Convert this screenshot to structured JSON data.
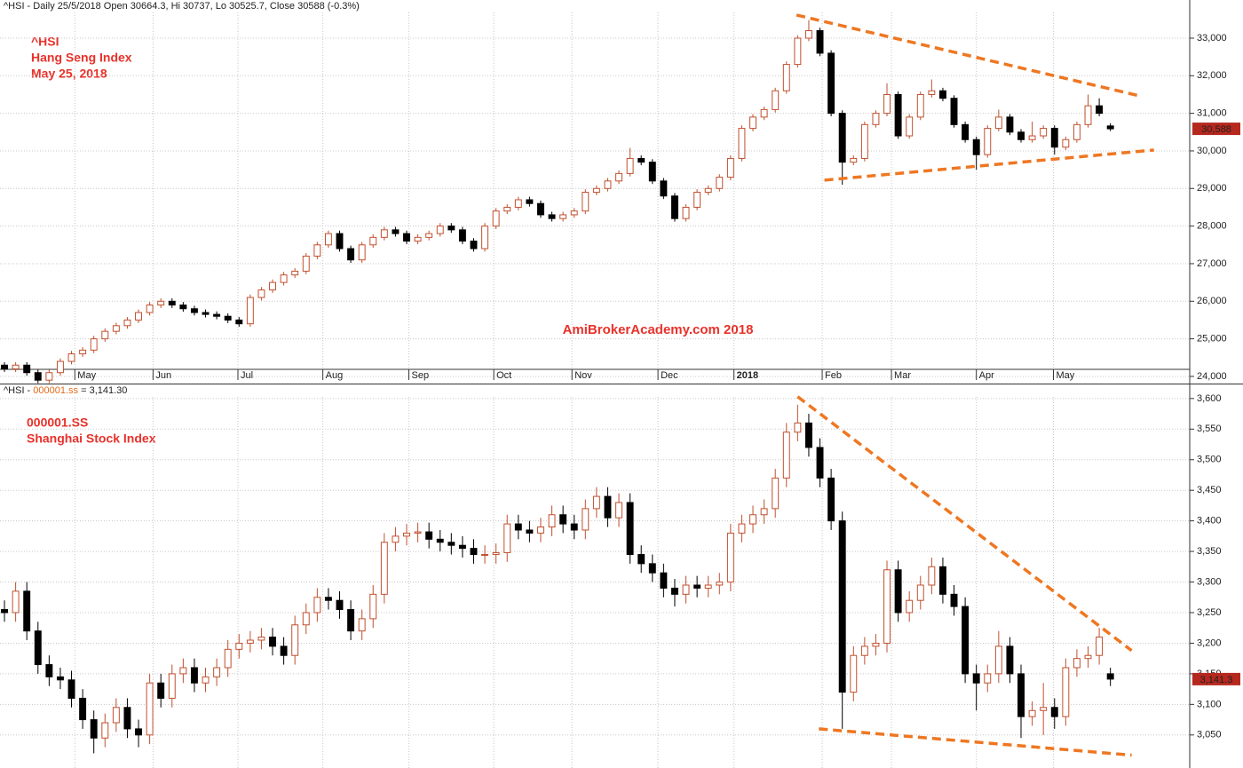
{
  "chart_data": [
    {
      "type": "candlestick",
      "title": "^HSI - Daily 25/5/2018 Open 30664.3, Hi 30737, Lo 30525.7, Close 30588 (-0.3%)",
      "annotations": [
        "^HSI",
        "Hang Seng Index",
        "May 25, 2018"
      ],
      "watermark": "AmiBrokerAcademy.com  2018",
      "last_label": "30,588",
      "up_color": "#c1502e",
      "down_color": "#000000",
      "trend_color": "#ee7722",
      "grid": true,
      "xlim": [
        -0.4,
        106.1
      ],
      "ylim": [
        23810,
        34015
      ],
      "yticks": [
        {
          "value": 24000,
          "label": "24,000"
        },
        {
          "value": 25000,
          "label": "25,000"
        },
        {
          "value": 26000,
          "label": "26,000"
        },
        {
          "value": 27000,
          "label": "27,000"
        },
        {
          "value": 28000,
          "label": "28,000"
        },
        {
          "value": 29000,
          "label": "29,000"
        },
        {
          "value": 30000,
          "label": "30,000"
        },
        {
          "value": 31000,
          "label": "31,000"
        },
        {
          "value": 32000,
          "label": "32,000"
        },
        {
          "value": 33000,
          "label": "33,000"
        }
      ],
      "xticks": [
        {
          "value": 6.3,
          "label": "May"
        },
        {
          "value": 13.3,
          "label": "Jun"
        },
        {
          "value": 20.9,
          "label": "Jul"
        },
        {
          "value": 28.5,
          "label": "Aug"
        },
        {
          "value": 36.2,
          "label": "Sep"
        },
        {
          "value": 43.8,
          "label": "Oct"
        },
        {
          "value": 50.8,
          "label": "Nov"
        },
        {
          "value": 58.5,
          "label": "Dec"
        },
        {
          "value": 65.3,
          "label": "2018"
        },
        {
          "value": 73.2,
          "label": "Feb"
        },
        {
          "value": 79.4,
          "label": "Mar"
        },
        {
          "value": 87,
          "label": "Apr"
        },
        {
          "value": 93.9,
          "label": "May"
        }
      ],
      "open": [
        24300,
        24200,
        24300,
        24100,
        23900,
        24100,
        24400,
        24600,
        24700,
        25000,
        25200,
        25350,
        25500,
        25700,
        25900,
        26000,
        25900,
        25800,
        25700,
        25650,
        25600,
        25500,
        25400,
        26100,
        26300,
        26500,
        26700,
        26800,
        27200,
        27500,
        27800,
        27400,
        27100,
        27500,
        27700,
        27900,
        27800,
        27600,
        27700,
        27800,
        28000,
        27900,
        27600,
        27400,
        28000,
        28400,
        28500,
        28700,
        28600,
        28300,
        28200,
        28300,
        28400,
        28900,
        29000,
        29200,
        29400,
        29800,
        29700,
        29200,
        28800,
        28200,
        28500,
        28900,
        29000,
        29300,
        29800,
        30600,
        30900,
        31100,
        31600,
        32300,
        33000,
        33200,
        32600,
        31000,
        29700,
        29800,
        30700,
        31000,
        31500,
        30400,
        30900,
        31500,
        31600,
        31400,
        30700,
        30300,
        29900,
        30600,
        30900,
        30500,
        30300,
        30400,
        30600,
        30100,
        30300,
        30700,
        31200,
        30664.3
      ],
      "high": [
        24380,
        24380,
        24380,
        24180,
        24180,
        24480,
        24680,
        24780,
        25080,
        25280,
        25430,
        25580,
        25780,
        25980,
        26080,
        26080,
        25980,
        25880,
        25780,
        25730,
        25680,
        25580,
        26180,
        26380,
        26580,
        26780,
        26880,
        27280,
        27580,
        27880,
        27880,
        27480,
        27580,
        27780,
        27980,
        27980,
        27880,
        27780,
        27880,
        28080,
        28080,
        27980,
        27680,
        28080,
        28480,
        28580,
        28780,
        28780,
        28680,
        28380,
        28380,
        28480,
        28980,
        29080,
        29280,
        29480,
        30080,
        29880,
        29780,
        29280,
        28880,
        28580,
        28980,
        29080,
        29380,
        29880,
        30680,
        30980,
        31180,
        31680,
        32380,
        33080,
        33480,
        33280,
        32680,
        31080,
        29880,
        30780,
        31080,
        31800,
        31580,
        30980,
        31580,
        31900,
        31680,
        31480,
        30780,
        30380,
        30680,
        31100,
        30980,
        30580,
        30780,
        30680,
        30680,
        30380,
        30780,
        31500,
        31400,
        30737
      ],
      "low": [
        24120,
        24120,
        24020,
        23820,
        23820,
        24020,
        24320,
        24520,
        24620,
        24920,
        25120,
        25270,
        25420,
        25620,
        25820,
        25820,
        25720,
        25620,
        25570,
        25520,
        25420,
        25320,
        25320,
        26020,
        26220,
        26420,
        26620,
        26720,
        27120,
        27420,
        27320,
        27020,
        27020,
        27420,
        27620,
        27720,
        27520,
        27520,
        27620,
        27720,
        27820,
        27520,
        27320,
        27320,
        27920,
        28320,
        28420,
        28520,
        28220,
        28120,
        28120,
        28220,
        28320,
        28820,
        28920,
        29120,
        29320,
        29620,
        29120,
        28720,
        28120,
        28120,
        28420,
        28820,
        28920,
        29220,
        29720,
        30520,
        30820,
        31020,
        31520,
        32220,
        32920,
        32520,
        30920,
        29100,
        29620,
        29720,
        30620,
        30920,
        30320,
        30320,
        30820,
        31420,
        31320,
        30620,
        30220,
        29500,
        29820,
        30520,
        30420,
        30220,
        30220,
        30320,
        29900,
        30020,
        30220,
        30620,
        30920,
        30525.7
      ],
      "close": [
        24200,
        24300,
        24100,
        23900,
        24100,
        24400,
        24600,
        24700,
        25000,
        25200,
        25350,
        25500,
        25700,
        25900,
        26000,
        25900,
        25800,
        25700,
        25650,
        25600,
        25500,
        25400,
        26100,
        26300,
        26500,
        26700,
        26800,
        27200,
        27500,
        27800,
        27400,
        27100,
        27500,
        27700,
        27900,
        27800,
        27600,
        27700,
        27800,
        28000,
        27900,
        27600,
        27400,
        28000,
        28400,
        28500,
        28700,
        28600,
        28300,
        28200,
        28300,
        28400,
        28900,
        29000,
        29200,
        29400,
        29800,
        29700,
        29200,
        28800,
        28200,
        28500,
        28900,
        29000,
        29300,
        29800,
        30600,
        30900,
        31100,
        31600,
        32300,
        33000,
        33200,
        32600,
        31000,
        29700,
        29800,
        30700,
        31000,
        31500,
        30400,
        30900,
        31500,
        31600,
        31400,
        30700,
        30300,
        29900,
        30600,
        30900,
        30500,
        30300,
        30400,
        30600,
        30100,
        30300,
        30700,
        31200,
        31000,
        30588
      ],
      "trendlines": [
        {
          "x": [
            70.9,
            101.6
          ],
          "y": [
            33615,
            31465
          ]
        },
        {
          "x": [
            73.4,
            102.9
          ],
          "y": [
            29221,
            30024
          ]
        }
      ]
    },
    {
      "type": "candlestick",
      "title_parts": [
        "^HSI -",
        "000001.ss",
        "= 3,141.30"
      ],
      "annotations": [
        "000001.SS",
        "Shanghai Stock Index"
      ],
      "last_label": "3,141.3",
      "up_color": "#c1502e",
      "down_color": "#000000",
      "trend_color": "#ee7722",
      "grid": true,
      "xlim": [
        -0.4,
        106.1
      ],
      "ylim": [
        2996,
        3623
      ],
      "yticks": [
        {
          "value": 3050,
          "label": "3,050"
        },
        {
          "value": 3100,
          "label": "3,100"
        },
        {
          "value": 3150,
          "label": "3,150"
        },
        {
          "value": 3200,
          "label": "3,200"
        },
        {
          "value": 3250,
          "label": "3,250"
        },
        {
          "value": 3300,
          "label": "3,300"
        },
        {
          "value": 3350,
          "label": "3,350"
        },
        {
          "value": 3400,
          "label": "3,400"
        },
        {
          "value": 3450,
          "label": "3,450"
        },
        {
          "value": 3500,
          "label": "3,500"
        },
        {
          "value": 3550,
          "label": "3,550"
        },
        {
          "value": 3600,
          "label": "3,600"
        }
      ],
      "xgrid": [
        6.3,
        13.3,
        20.9,
        28.5,
        36.2,
        43.8,
        50.8,
        58.5,
        65.3,
        73.2,
        79.4,
        87,
        93.9
      ],
      "open": [
        3255,
        3250,
        3285,
        3220,
        3165,
        3145,
        3140,
        3110,
        3075,
        3045,
        3070,
        3095,
        3060,
        3050,
        3135,
        3110,
        3150,
        3160,
        3135,
        3145,
        3160,
        3190,
        3200,
        3205,
        3210,
        3195,
        3180,
        3230,
        3250,
        3275,
        3270,
        3255,
        3220,
        3240,
        3280,
        3365,
        3375,
        3380,
        3382,
        3370,
        3365,
        3360,
        3355,
        3345,
        3345,
        3348,
        3395,
        3385,
        3380,
        3390,
        3410,
        3395,
        3385,
        3420,
        3440,
        3405,
        3430,
        3345,
        3330,
        3315,
        3290,
        3280,
        3295,
        3290,
        3295,
        3300,
        3380,
        3395,
        3410,
        3420,
        3470,
        3545,
        3560,
        3520,
        3470,
        3400,
        3120,
        3180,
        3195,
        3200,
        3320,
        3250,
        3270,
        3295,
        3325,
        3280,
        3260,
        3150,
        3135,
        3150,
        3195,
        3150,
        3080,
        3090,
        3095,
        3080,
        3160,
        3175,
        3180,
        3150
      ],
      "high": [
        3270,
        3300,
        3300,
        3235,
        3180,
        3160,
        3155,
        3125,
        3090,
        3085,
        3110,
        3110,
        3075,
        3150,
        3150,
        3165,
        3175,
        3175,
        3160,
        3175,
        3205,
        3215,
        3220,
        3225,
        3225,
        3210,
        3245,
        3265,
        3290,
        3290,
        3285,
        3270,
        3255,
        3295,
        3380,
        3390,
        3395,
        3397,
        3397,
        3385,
        3380,
        3375,
        3370,
        3360,
        3363,
        3410,
        3410,
        3400,
        3405,
        3425,
        3425,
        3410,
        3435,
        3455,
        3455,
        3445,
        3445,
        3360,
        3345,
        3330,
        3305,
        3310,
        3310,
        3310,
        3315,
        3395,
        3410,
        3425,
        3435,
        3485,
        3560,
        3590,
        3575,
        3535,
        3485,
        3415,
        3195,
        3210,
        3215,
        3335,
        3335,
        3285,
        3310,
        3340,
        3340,
        3295,
        3275,
        3165,
        3165,
        3220,
        3210,
        3165,
        3105,
        3135,
        3110,
        3175,
        3190,
        3195,
        3225,
        3160
      ],
      "low": [
        3235,
        3235,
        3205,
        3150,
        3130,
        3125,
        3095,
        3060,
        3020,
        3030,
        3055,
        3045,
        3030,
        3035,
        3095,
        3095,
        3135,
        3120,
        3120,
        3130,
        3145,
        3175,
        3185,
        3190,
        3180,
        3165,
        3165,
        3215,
        3235,
        3255,
        3240,
        3205,
        3205,
        3225,
        3265,
        3350,
        3360,
        3365,
        3355,
        3350,
        3345,
        3340,
        3330,
        3330,
        3330,
        3333,
        3370,
        3365,
        3365,
        3375,
        3380,
        3370,
        3370,
        3405,
        3390,
        3390,
        3330,
        3315,
        3300,
        3275,
        3260,
        3265,
        3275,
        3275,
        3280,
        3285,
        3365,
        3380,
        3395,
        3405,
        3455,
        3530,
        3505,
        3455,
        3385,
        3060,
        3105,
        3165,
        3180,
        3185,
        3235,
        3235,
        3255,
        3280,
        3265,
        3245,
        3135,
        3090,
        3120,
        3135,
        3135,
        3045,
        3065,
        3050,
        3060,
        3065,
        3145,
        3160,
        3165,
        3130
      ],
      "close": [
        3250,
        3285,
        3220,
        3165,
        3145,
        3140,
        3110,
        3075,
        3045,
        3070,
        3095,
        3060,
        3050,
        3135,
        3110,
        3150,
        3160,
        3135,
        3145,
        3160,
        3190,
        3200,
        3205,
        3210,
        3195,
        3180,
        3230,
        3250,
        3275,
        3270,
        3255,
        3220,
        3240,
        3280,
        3365,
        3375,
        3380,
        3382,
        3370,
        3365,
        3360,
        3355,
        3345,
        3345,
        3348,
        3395,
        3385,
        3380,
        3390,
        3410,
        3395,
        3385,
        3420,
        3440,
        3405,
        3430,
        3345,
        3330,
        3315,
        3290,
        3280,
        3295,
        3290,
        3295,
        3300,
        3380,
        3395,
        3410,
        3420,
        3470,
        3545,
        3560,
        3520,
        3470,
        3400,
        3120,
        3180,
        3195,
        3200,
        3320,
        3250,
        3270,
        3295,
        3325,
        3280,
        3260,
        3150,
        3135,
        3150,
        3195,
        3150,
        3080,
        3090,
        3095,
        3080,
        3160,
        3175,
        3180,
        3210,
        3141.3
      ],
      "trendlines": [
        {
          "x": [
            71,
            100.9
          ],
          "y": [
            3603,
            3188
          ]
        },
        {
          "x": [
            72.9,
            100.9
          ],
          "y": [
            3060,
            3017
          ]
        }
      ]
    }
  ]
}
